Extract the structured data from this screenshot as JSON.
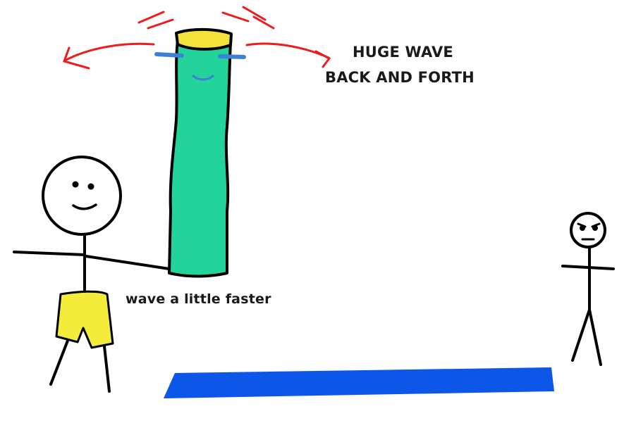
{
  "annotations": {
    "huge_wave": "HUGE WAVE",
    "back_and_forth": "BACK AND FORTH",
    "wave_faster": "wave a little faster"
  },
  "colors": {
    "tube": "#22d49c",
    "tube_top": "#f3e23a",
    "eyes": "#3b82d6",
    "arrows": "#ee1c1c",
    "shorts": "#f4ec3a",
    "mat": "#0c56e8",
    "ink": "#000000"
  }
}
